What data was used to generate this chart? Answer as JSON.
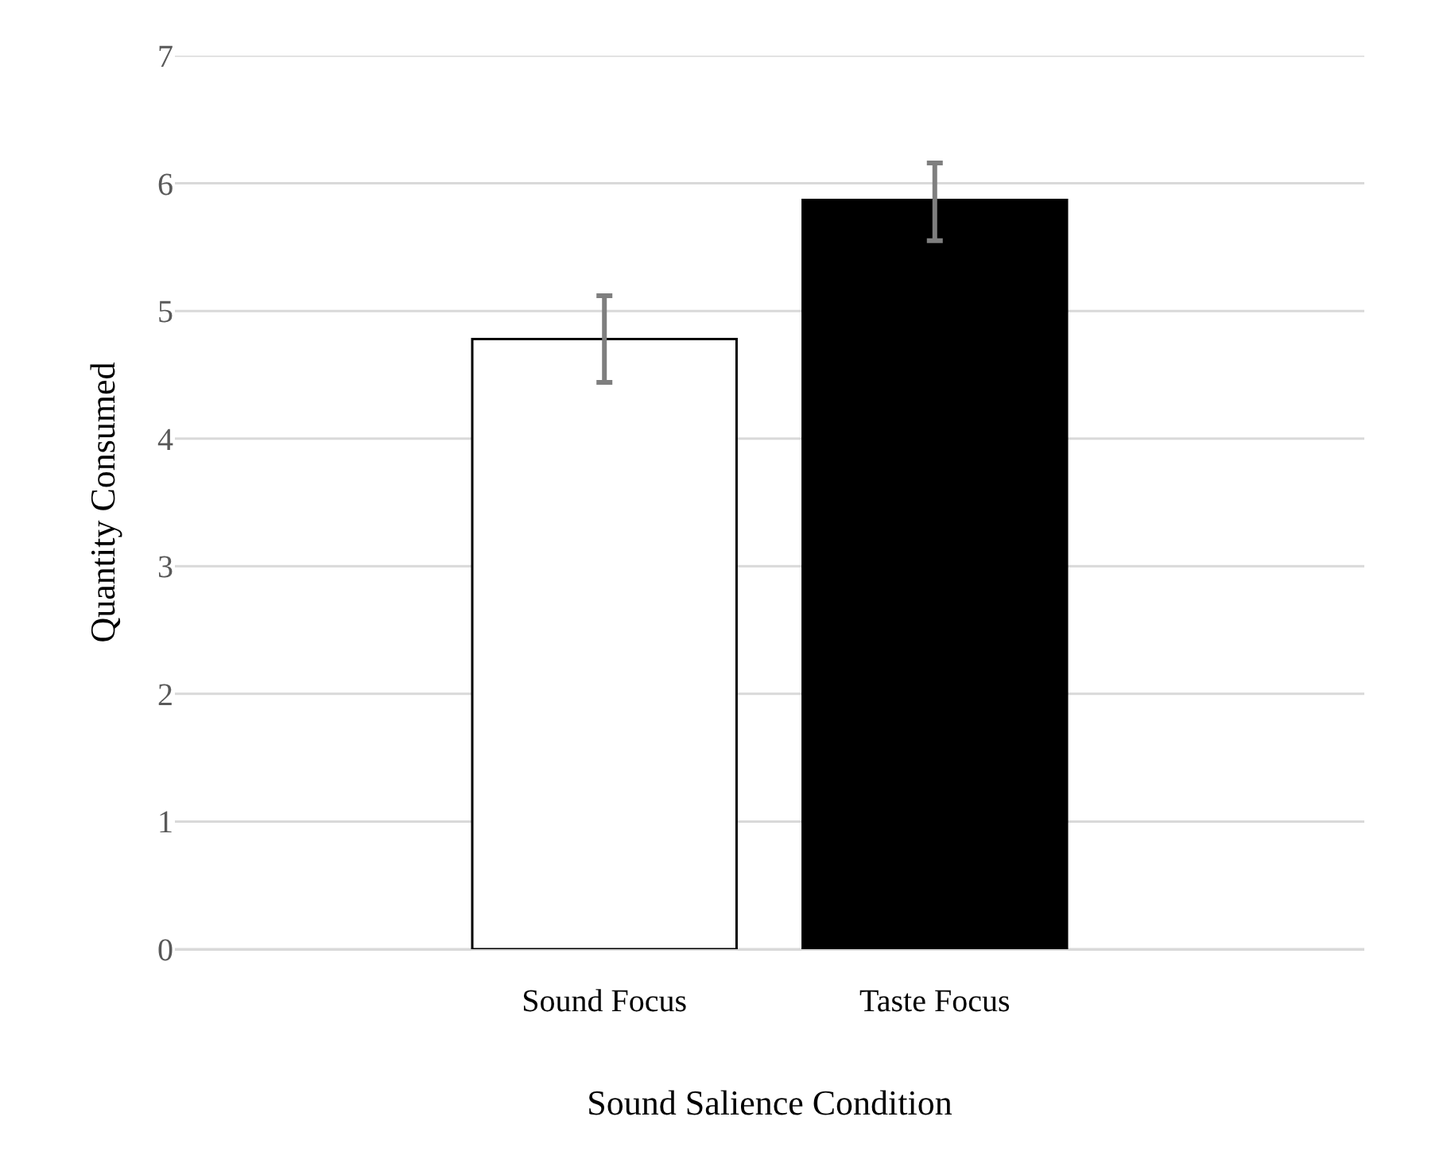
{
  "chart_data": {
    "type": "bar",
    "xlabel": "Sound Salience Condition",
    "ylabel": "Quantity Consumed",
    "categories": [
      "Sound Focus",
      "Taste Focus"
    ],
    "values": [
      4.78,
      5.87
    ],
    "colors": [
      "#ffffff",
      "#000000"
    ],
    "errors": [
      [
        4.44,
        5.12
      ],
      [
        5.55,
        6.16
      ]
    ],
    "ylim": [
      0,
      7
    ],
    "yticks": [
      0,
      1,
      2,
      3,
      4,
      5,
      6,
      7
    ],
    "grid": "y"
  }
}
